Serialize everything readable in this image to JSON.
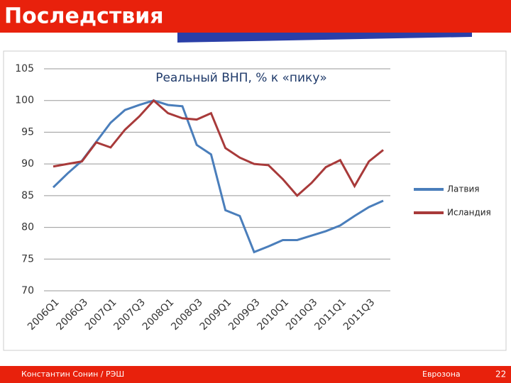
{
  "slide": {
    "title": "Последствия",
    "footer_left": "Константин Сонин / РЭШ",
    "footer_center": "Еврозона",
    "page_number": "22"
  },
  "chart_data": {
    "type": "line",
    "title": "Реальный ВНП, % к «пику»",
    "categories": [
      "2006Q1",
      null,
      "2006Q3",
      null,
      "2007Q1",
      null,
      "2007Q3",
      null,
      "2008Q1",
      null,
      "2008Q3",
      null,
      "2009Q1",
      null,
      "2009Q3",
      null,
      "2010Q1",
      null,
      "2010Q3",
      null,
      "2011Q1",
      null,
      "2011Q3",
      null
    ],
    "series": [
      {
        "name": "Латвия",
        "color": "#4a7ebb",
        "values": [
          86.3,
          88.5,
          90.5,
          93.5,
          96.5,
          98.5,
          99.3,
          100,
          99.3,
          99.1,
          93,
          91.5,
          82.7,
          81.8,
          76.1,
          77,
          78,
          78,
          78.7,
          79.4,
          80.3,
          81.8,
          83.2,
          84.2
        ]
      },
      {
        "name": "Исландия",
        "color": "#a83a3a",
        "values": [
          89.6,
          90,
          90.4,
          93.4,
          92.6,
          95.4,
          97.5,
          100,
          98,
          97.2,
          97,
          98,
          92.5,
          91,
          90,
          89.8,
          87.6,
          85,
          87,
          89.5,
          90.6,
          86.5,
          90.4,
          92.2
        ]
      }
    ],
    "ylim": [
      70,
      105
    ],
    "yticks": [
      70,
      75,
      80,
      85,
      90,
      95,
      100,
      105
    ],
    "grid": true,
    "legend": "right"
  }
}
